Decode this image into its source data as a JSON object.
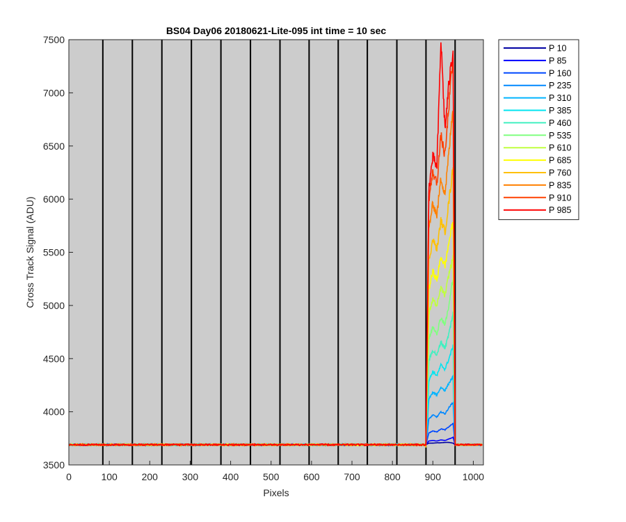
{
  "chart_data": {
    "type": "line",
    "title": "BS04 Day06 20180621-Lite-095 int time = 10 sec",
    "xlabel": "Pixels",
    "ylabel": "Cross Track Signal (ADU)",
    "xlim": [
      0,
      1025
    ],
    "ylim": [
      3500,
      7500
    ],
    "xticks": [
      0,
      100,
      200,
      300,
      400,
      500,
      600,
      700,
      800,
      900,
      1000
    ],
    "yticks": [
      3500,
      4000,
      4500,
      5000,
      5500,
      6000,
      6500,
      7000,
      7500
    ],
    "grid": false,
    "background": "#cccccc",
    "legend_position": "outside-top-right",
    "vertical_lines_x": [
      84,
      157,
      230,
      303,
      376,
      449,
      522,
      594,
      666,
      738,
      811,
      883,
      955
    ],
    "baseline_value": 3690,
    "signal_region": [
      883,
      955
    ],
    "series": [
      {
        "name": "P 10",
        "color": "#0000a3",
        "peak": 3710,
        "samples": [
          [
            883,
            3690
          ],
          [
            890,
            3705
          ],
          [
            900,
            3705
          ],
          [
            910,
            3708
          ],
          [
            920,
            3708
          ],
          [
            930,
            3712
          ],
          [
            940,
            3712
          ],
          [
            950,
            3705
          ],
          [
            955,
            3690
          ]
        ]
      },
      {
        "name": "P 85",
        "color": "#0000ff",
        "peak": 3760,
        "samples": [
          [
            883,
            3690
          ],
          [
            890,
            3725
          ],
          [
            900,
            3730
          ],
          [
            910,
            3725
          ],
          [
            920,
            3735
          ],
          [
            930,
            3730
          ],
          [
            940,
            3745
          ],
          [
            950,
            3760
          ],
          [
            955,
            3690
          ]
        ]
      },
      {
        "name": "P 160",
        "color": "#0048ff",
        "peak": 3900,
        "samples": [
          [
            883,
            3690
          ],
          [
            890,
            3800
          ],
          [
            900,
            3820
          ],
          [
            910,
            3810
          ],
          [
            920,
            3840
          ],
          [
            930,
            3830
          ],
          [
            940,
            3860
          ],
          [
            950,
            3890
          ],
          [
            955,
            3690
          ]
        ]
      },
      {
        "name": "P 235",
        "color": "#0088ff",
        "peak": 4100,
        "samples": [
          [
            883,
            3690
          ],
          [
            890,
            3930
          ],
          [
            900,
            3970
          ],
          [
            910,
            3950
          ],
          [
            920,
            4000
          ],
          [
            930,
            3980
          ],
          [
            940,
            4040
          ],
          [
            950,
            4090
          ],
          [
            955,
            3690
          ]
        ]
      },
      {
        "name": "P 310",
        "color": "#00b4ff",
        "peak": 4330,
        "samples": [
          [
            883,
            3690
          ],
          [
            890,
            4120
          ],
          [
            900,
            4180
          ],
          [
            910,
            4160
          ],
          [
            920,
            4230
          ],
          [
            930,
            4200
          ],
          [
            940,
            4270
          ],
          [
            950,
            4330
          ],
          [
            955,
            3690
          ]
        ]
      },
      {
        "name": "P 385",
        "color": "#00e4f0",
        "peak": 4630,
        "samples": [
          [
            883,
            3690
          ],
          [
            890,
            4290
          ],
          [
            900,
            4380
          ],
          [
            910,
            4340
          ],
          [
            920,
            4440
          ],
          [
            930,
            4400
          ],
          [
            940,
            4500
          ],
          [
            950,
            4620
          ],
          [
            955,
            3690
          ]
        ]
      },
      {
        "name": "P 460",
        "color": "#40f0c0",
        "peak": 4940,
        "samples": [
          [
            883,
            3690
          ],
          [
            890,
            4480
          ],
          [
            900,
            4580
          ],
          [
            910,
            4530
          ],
          [
            920,
            4660
          ],
          [
            930,
            4600
          ],
          [
            940,
            4740
          ],
          [
            950,
            4930
          ],
          [
            955,
            3690
          ]
        ]
      },
      {
        "name": "P 535",
        "color": "#80ff80",
        "peak": 5280,
        "samples": [
          [
            883,
            3690
          ],
          [
            890,
            4680
          ],
          [
            900,
            4800
          ],
          [
            910,
            4740
          ],
          [
            920,
            4890
          ],
          [
            930,
            4820
          ],
          [
            940,
            5000
          ],
          [
            950,
            5270
          ],
          [
            955,
            3690
          ]
        ]
      },
      {
        "name": "P 610",
        "color": "#c0ff40",
        "peak": 5460,
        "samples": [
          [
            883,
            3690
          ],
          [
            890,
            4920
          ],
          [
            900,
            5060
          ],
          [
            910,
            4990
          ],
          [
            920,
            5170
          ],
          [
            930,
            5090
          ],
          [
            940,
            5300
          ],
          [
            950,
            5450
          ],
          [
            955,
            3690
          ]
        ]
      },
      {
        "name": "P 685",
        "color": "#ffff00",
        "peak": 5800,
        "samples": [
          [
            883,
            3690
          ],
          [
            890,
            5150
          ],
          [
            900,
            5320
          ],
          [
            910,
            5240
          ],
          [
            920,
            5460
          ],
          [
            930,
            5370
          ],
          [
            940,
            5600
          ],
          [
            950,
            5790
          ],
          [
            955,
            3690
          ]
        ]
      },
      {
        "name": "P 760",
        "color": "#ffc000",
        "peak": 6310,
        "samples": [
          [
            883,
            3690
          ],
          [
            890,
            5420
          ],
          [
            900,
            5620
          ],
          [
            910,
            5530
          ],
          [
            920,
            5800
          ],
          [
            930,
            5690
          ],
          [
            940,
            5990
          ],
          [
            950,
            6300
          ],
          [
            955,
            3690
          ]
        ]
      },
      {
        "name": "P 835",
        "color": "#ff8000",
        "peak": 6900,
        "samples": [
          [
            883,
            3690
          ],
          [
            890,
            5720
          ],
          [
            900,
            5960
          ],
          [
            910,
            5850
          ],
          [
            920,
            6200
          ],
          [
            930,
            6050
          ],
          [
            940,
            6450
          ],
          [
            950,
            6880
          ],
          [
            955,
            3690
          ]
        ]
      },
      {
        "name": "P 910",
        "color": "#ff4000",
        "peak": 7360,
        "samples": [
          [
            883,
            3690
          ],
          [
            890,
            6000
          ],
          [
            900,
            6250
          ],
          [
            910,
            6150
          ],
          [
            920,
            6600
          ],
          [
            930,
            6400
          ],
          [
            940,
            6900
          ],
          [
            950,
            7350
          ],
          [
            955,
            3690
          ]
        ]
      },
      {
        "name": "P 985",
        "color": "#ff0000",
        "peak": 7500,
        "samples": [
          [
            883,
            3690
          ],
          [
            890,
            6100
          ],
          [
            900,
            6400
          ],
          [
            910,
            6300
          ],
          [
            920,
            7500
          ],
          [
            930,
            6650
          ],
          [
            940,
            7100
          ],
          [
            950,
            7400
          ],
          [
            955,
            3690
          ]
        ]
      }
    ]
  }
}
